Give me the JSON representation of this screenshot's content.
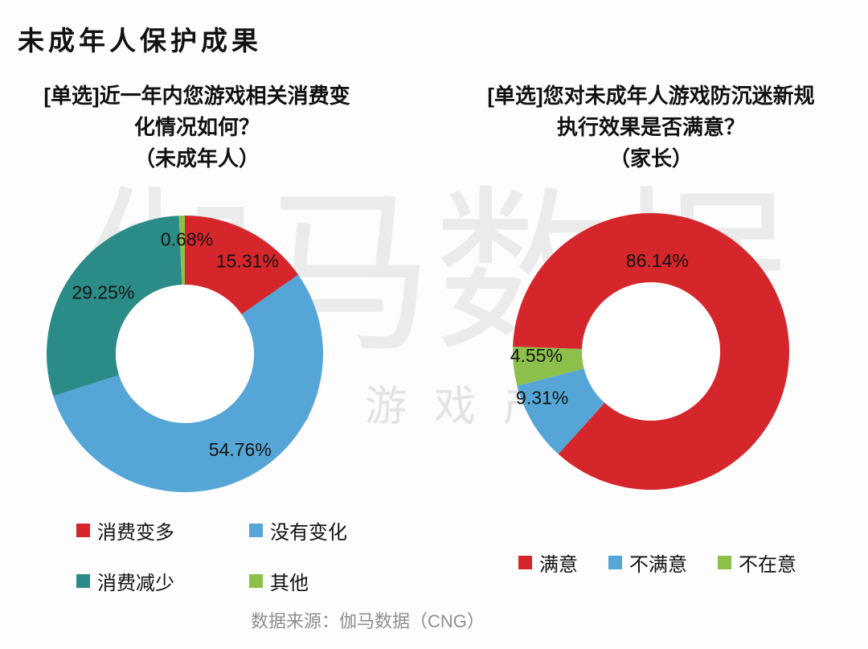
{
  "page": {
    "title": "未成年人保护成果",
    "source": "数据来源：伽马数据（CNG）",
    "watermark": {
      "main": "伽马数据",
      "sub": "微信号：游戏产业报告"
    }
  },
  "colors": {
    "accent_red": "#d5262b",
    "blue": "#55a6d6",
    "teal": "#2b8b86",
    "green": "#8dc04b",
    "label_text": "#121212",
    "source_text": "#8e8e8e",
    "watermark": "#ebebeb"
  },
  "chart_data": [
    {
      "type": "pie",
      "donut": true,
      "legend_position": "bottom",
      "title": "[单选]近一年内您游戏相关消费变化情况如何？（未成年人）",
      "title_lines": [
        "[单选]近一年内您游戏相关消费变",
        "化情况如何？",
        "（未成年人）"
      ],
      "rotation_deg": 0,
      "slices": [
        {
          "key": "spend-more",
          "label": "消费变多",
          "value": 15.31,
          "color": "#d5262b",
          "label_angle": 34,
          "label_radius": 0.81
        },
        {
          "key": "no-change",
          "label": "没有变化",
          "value": 54.76,
          "color": "#55a6d6",
          "label_angle": 150,
          "label_radius": 0.8
        },
        {
          "key": "spend-less",
          "label": "消费减少",
          "value": 29.25,
          "color": "#2b8b86",
          "label_angle": 307,
          "label_radius": 0.74
        },
        {
          "key": "other",
          "label": "其他",
          "value": 0.68,
          "color": "#8dc04b",
          "label_angle": 1,
          "label_radius": 0.83
        }
      ]
    },
    {
      "type": "pie",
      "donut": true,
      "legend_position": "bottom",
      "title": "[单选]您对未成年人游戏防沉迷新规执行效果是否满意？（家长）",
      "title_lines": [
        "[单选]您对未成年人游戏防沉迷新规",
        "执行效果是否满意？",
        "（家长）"
      ],
      "rotation_deg": 272,
      "slices": [
        {
          "key": "satisfied",
          "label": "满意",
          "value": 86.14,
          "color": "#d5262b",
          "label_angle": 4,
          "label_radius": 0.66
        },
        {
          "key": "dissatisfied",
          "label": "不满意",
          "value": 9.31,
          "color": "#55a6d6",
          "label_angle": 247,
          "label_radius": 0.855
        },
        {
          "key": "indifferent",
          "label": "不在意",
          "value": 4.55,
          "color": "#8dc04b",
          "label_angle": 268,
          "label_radius": 0.83
        }
      ]
    }
  ]
}
